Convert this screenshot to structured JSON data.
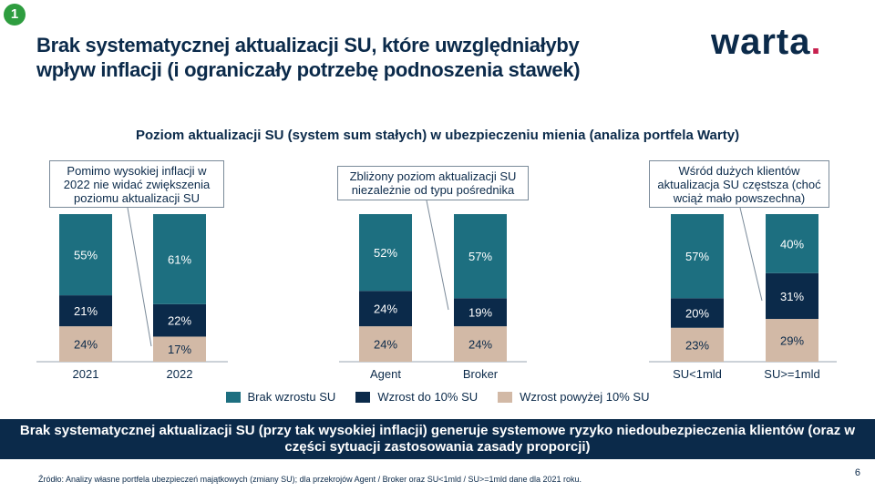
{
  "badge": "1",
  "title_line1": "Brak systematycznej aktualizacji SU, które uwzględniałyby",
  "title_line2": "wpływ inflacji (i ograniczały potrzebę podnoszenia stawek)",
  "logo_text": "warta",
  "logo_dot": ".",
  "colors": {
    "brak": "#1d6f80",
    "do10": "#0b2a4a",
    "powyzej10": "#d2b9a6",
    "banner": "#0b2a4a",
    "brand_dot": "#c7204e"
  },
  "callouts": [
    "Pomimo wysokiej inflacji w 2022 nie widać zwiększenia poziomu aktualizacji SU",
    "Zbliżony poziom aktualizacji SU niezależnie od typu pośrednika",
    "Wśród dużych klientów aktualizacja SU częstsza (choć wciąż mało powszechna)"
  ],
  "banner": "Brak systematycznej aktualizacji SU  (przy tak wysokiej inflacji) generuje systemowe ryzyko niedoubezpieczenia klientów (oraz w części sytuacji zastosowania zasady proporcji)",
  "source": "Źródło: Analizy własne portfela ubezpieczeń majątkowych (zmiany SU); dla przekrojów Agent / Broker oraz SU<1mld / SU>=1mld dane dla 2021 roku.",
  "page_number": "6",
  "chart_data": {
    "type": "bar",
    "stacked": true,
    "title": "Poziom aktualizacji SU (system sum stałych) w ubezpieczeniu mienia (analiza portfela Warty)",
    "categories": [
      "2021",
      "2022",
      "Agent",
      "Broker",
      "SU<1mld",
      "SU>=1mld"
    ],
    "series": [
      {
        "name": "Brak wzrostu SU",
        "values": [
          55,
          61,
          52,
          57,
          57,
          40
        ],
        "labels": [
          "55%",
          "61%",
          "52%",
          "57%",
          "57%",
          "40%"
        ]
      },
      {
        "name": "Wzrost do 10% SU",
        "values": [
          21,
          22,
          24,
          19,
          20,
          31
        ],
        "labels": [
          "21%",
          "22%",
          "24%",
          "19%",
          "20%",
          "31%"
        ]
      },
      {
        "name": "Wzrost powyżej 10% SU",
        "values": [
          24,
          17,
          24,
          24,
          23,
          29
        ],
        "labels": [
          "24%",
          "17%",
          "24%",
          "24%",
          "23%",
          "29%"
        ]
      }
    ],
    "ylim": [
      0,
      100
    ],
    "legend": "bottom"
  }
}
